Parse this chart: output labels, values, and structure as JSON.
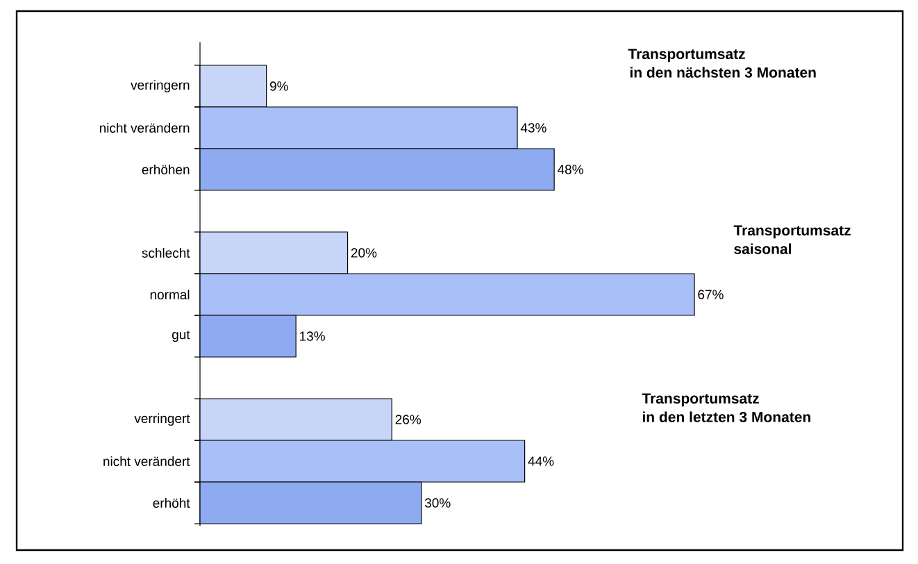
{
  "chart_data": {
    "type": "bar",
    "orientation": "horizontal",
    "categories": [
      "verringern",
      "nicht verändern",
      "erhöhen",
      null,
      "schlecht",
      "normal",
      "gut",
      null,
      "verringert",
      "nicht verändert",
      "erhöht"
    ],
    "values": [
      9,
      43,
      48,
      null,
      20,
      67,
      13,
      null,
      26,
      44,
      30
    ],
    "value_labels": [
      "9%",
      "43%",
      "48%",
      null,
      "20%",
      "67%",
      "13%",
      null,
      "26%",
      "44%",
      "30%"
    ],
    "colors": [
      "#c6d5f8",
      "#a9bff7",
      "#8eabf1",
      null,
      "#c6d5f8",
      "#a9bff7",
      "#8eabf1",
      null,
      "#c6d5f8",
      "#a9bff7",
      "#8eabf1"
    ],
    "annotations": [
      "Transportumsatz",
      "in den nächsten 3 Monaten",
      "Transportumsatz",
      "saisonal",
      "Transportumsatz",
      "in den letzten 3 Monaten"
    ]
  }
}
